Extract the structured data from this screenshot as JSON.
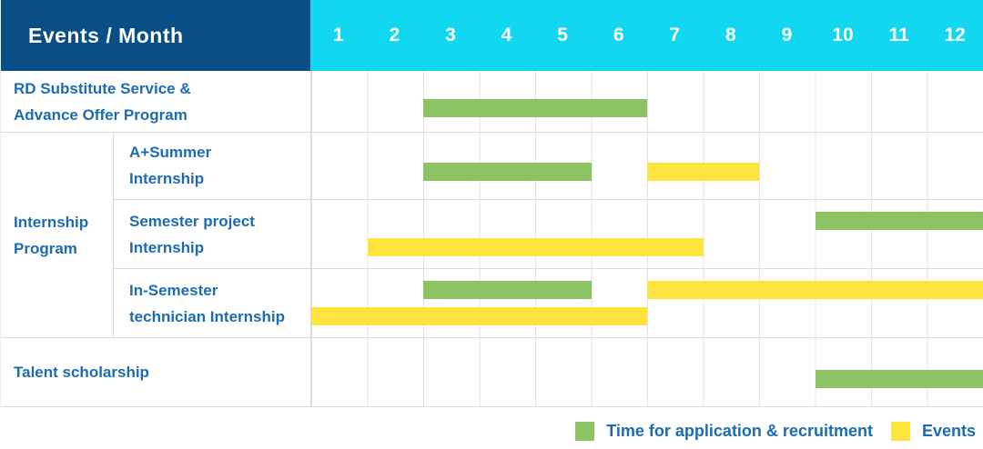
{
  "header": {
    "title": "Events / Month",
    "months": [
      "1",
      "2",
      "3",
      "4",
      "5",
      "6",
      "7",
      "8",
      "9",
      "10",
      "11",
      "12"
    ]
  },
  "colors": {
    "header_bg": "#084F87",
    "month_header_bg": "#11D8F0",
    "label_text": "#1C6CB1",
    "application_green": "#8CC463",
    "events_yellow": "#FFE33E",
    "grid_line": "#E3E3E3",
    "row_border": "#DBDBDB",
    "header_text": "#FFFFFF"
  },
  "group": {
    "label_lines": [
      "Internship",
      "Program"
    ]
  },
  "legend": {
    "items": [
      {
        "name": "application",
        "label": "Time for application & recruitment",
        "color_key": "application_green"
      },
      {
        "name": "events",
        "label": "Events",
        "color_key": "events_yellow"
      }
    ]
  },
  "chart_data": {
    "type": "bar",
    "variant": "gantt",
    "title": "Events / Month",
    "x_axis": {
      "unit": "month",
      "ticks": [
        1,
        2,
        3,
        4,
        5,
        6,
        7,
        8,
        9,
        10,
        11,
        12
      ],
      "range": [
        1,
        12
      ]
    },
    "grid": true,
    "legend_position": "bottom-right",
    "series_legend": [
      {
        "series": "Time for application & recruitment",
        "color": "#8CC463"
      },
      {
        "series": "Events",
        "color": "#FFE33E"
      }
    ],
    "rows": [
      {
        "id": "rd-substitute",
        "group": null,
        "label_lines": [
          "RD Substitute Service &",
          "Advance Offer Program"
        ],
        "bars": [
          {
            "series": "Time for application & recruitment",
            "color_key": "application_green",
            "start_month": 3,
            "end_month": 6,
            "lane": "mid"
          }
        ]
      },
      {
        "id": "a-plus-summer",
        "group": "Internship Program",
        "label_lines": [
          "A+Summer",
          "Internship"
        ],
        "bars": [
          {
            "series": "Time for application & recruitment",
            "color_key": "application_green",
            "start_month": 3,
            "end_month": 5,
            "lane": "mid"
          },
          {
            "series": "Events",
            "color_key": "events_yellow",
            "start_month": 7,
            "end_month": 8,
            "lane": "mid"
          }
        ]
      },
      {
        "id": "semester-project",
        "group": "Internship Program",
        "label_lines": [
          "Semester project",
          "Internship"
        ],
        "bars": [
          {
            "series": "Time for application & recruitment",
            "color_key": "application_green",
            "start_month": 10,
            "end_month": 12,
            "lane": "upper"
          },
          {
            "series": "Events",
            "color_key": "events_yellow",
            "start_month": 2,
            "end_month": 7,
            "lane": "lower"
          }
        ]
      },
      {
        "id": "in-semester-technician",
        "group": "Internship Program",
        "label_lines": [
          "In-Semester",
          "technician Internship"
        ],
        "bars": [
          {
            "series": "Time for application & recruitment",
            "color_key": "application_green",
            "start_month": 3,
            "end_month": 5,
            "lane": "upper"
          },
          {
            "series": "Events",
            "color_key": "events_yellow",
            "start_month": 7,
            "end_month": 12,
            "lane": "upper"
          },
          {
            "series": "Events",
            "color_key": "events_yellow",
            "start_month": 1,
            "end_month": 6,
            "lane": "lower"
          }
        ]
      },
      {
        "id": "talent-scholarship",
        "group": null,
        "label_lines": [
          "Talent scholarship"
        ],
        "bars": [
          {
            "series": "Time for application & recruitment",
            "color_key": "application_green",
            "start_month": 10,
            "end_month": 12,
            "lane": "mid"
          }
        ]
      }
    ]
  }
}
